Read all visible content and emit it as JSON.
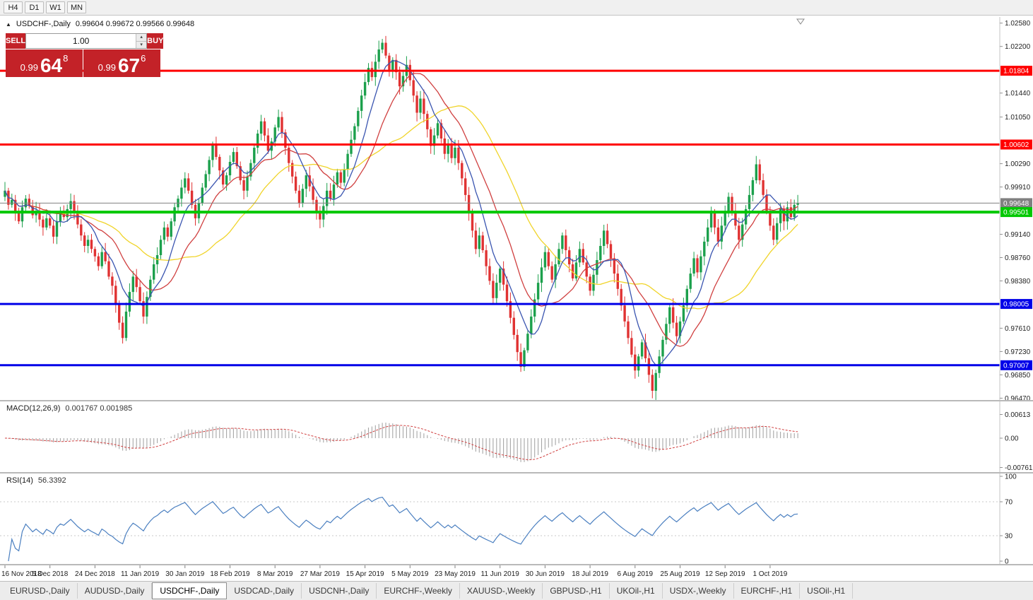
{
  "colors": {
    "trade_red": "#c32228",
    "bull": "#1ca04c",
    "bear": "#e03232",
    "ma_fast": "#3a55b0",
    "ma_med": "#d04040",
    "ma_slow": "#f0d42a",
    "macd_hist": "#a6a6a6",
    "macd_signal": "#d04040",
    "rsi_line": "#4a7fc0",
    "cur_price": "#808080"
  },
  "icons": {
    "collapse": "▲",
    "spin_up": "▴",
    "spin_down": "▾"
  },
  "toolbar": {
    "timeframes": [
      "H4",
      "D1",
      "W1",
      "MN"
    ]
  },
  "header": {
    "symbol": "USDCHF-,Daily",
    "ohlc": "0.99604 0.99672 0.99566 0.99648"
  },
  "trade_widget": {
    "sell_label": "SELL",
    "buy_label": "BUY",
    "volume": "1.00",
    "sell_small": "0.99",
    "sell_big": "64",
    "sell_sup": "8",
    "buy_small": "0.99",
    "buy_big": "67",
    "buy_sup": "6"
  },
  "indicators": {
    "macd": {
      "name": "MACD(12,26,9)",
      "values": "0.001767 0.001985",
      "axis": [
        "0.00613",
        "0.00",
        "-0.00761"
      ]
    },
    "rsi": {
      "name": "RSI(14)",
      "value": "56.3392",
      "axis": [
        "100",
        "70",
        "30",
        "0"
      ],
      "levels": [
        70,
        30
      ]
    }
  },
  "tabs": {
    "items": [
      "EURUSD-,Daily",
      "AUDUSD-,Daily",
      "USDCHF-,Daily",
      "USDCAD-,Daily",
      "USDCNH-,Daily",
      "EURCHF-,Weekly",
      "XAUUSD-,Weekly",
      "GBPUSD-,H1",
      "UKOil-,H1",
      "USDX-,Weekly",
      "EURCHF-,H1",
      "USOil-,H1"
    ],
    "active_index": 2
  },
  "chart_data": {
    "type": "candlestick",
    "symbol": "USDCHF",
    "timeframe": "Daily",
    "ohlc_display": {
      "open": 0.99604,
      "high": 0.99672,
      "low": 0.99566,
      "close": 0.99648
    },
    "price_range": [
      0.9644,
      1.0268
    ],
    "y_ticks": [
      "1.02580",
      "1.02200",
      "1.01440",
      "1.01050",
      "1.00290",
      "0.99910",
      "0.99140",
      "0.98760",
      "0.98380",
      "0.97610",
      "0.97230",
      "0.96850",
      "0.96470"
    ],
    "horizontal_lines": [
      {
        "label": "1.01804",
        "price": 1.01804,
        "color": "#ff0000",
        "width": 3
      },
      {
        "label": "1.00602",
        "price": 1.00602,
        "color": "#ff0000",
        "width": 3
      },
      {
        "label": "0.99501",
        "price": 0.99501,
        "color": "#00c800",
        "width": 4
      },
      {
        "label": "0.98005",
        "price": 0.98005,
        "color": "#0000e8",
        "width": 3
      },
      {
        "label": "0.97007",
        "price": 0.97007,
        "color": "#0000e8",
        "width": 3
      }
    ],
    "current_price": {
      "label": "0.99648",
      "price": 0.99648
    },
    "x_labels": [
      "16 Nov 2018",
      "5 Dec 2018",
      "24 Dec 2018",
      "11 Jan 2019",
      "30 Jan 2019",
      "18 Feb 2019",
      "8 Mar 2019",
      "27 Mar 2019",
      "15 Apr 2019",
      "5 May 2019",
      "23 May 2019",
      "11 Jun 2019",
      "30 Jun 2019",
      "18 Jul 2019",
      "6 Aug 2019",
      "25 Aug 2019",
      "12 Sep 2019",
      "1 Oct 2019"
    ],
    "candles_per_label": 13,
    "moving_average_periods": {
      "fast": 8,
      "medium": 17,
      "slow": 34
    },
    "macd_params": [
      12,
      26,
      9
    ],
    "rsi_period": 14,
    "closes": [
      0.9985,
      0.9962,
      0.997,
      0.9948,
      0.9935,
      0.9958,
      0.9972,
      0.996,
      0.9945,
      0.9952,
      0.9938,
      0.9925,
      0.994,
      0.9928,
      0.991,
      0.9935,
      0.995,
      0.9942,
      0.9955,
      0.9968,
      0.995,
      0.993,
      0.9912,
      0.9895,
      0.9905,
      0.989,
      0.9878,
      0.9862,
      0.9885,
      0.987,
      0.9845,
      0.983,
      0.98,
      0.977,
      0.9745,
      0.9788,
      0.982,
      0.9845,
      0.9828,
      0.9805,
      0.978,
      0.9812,
      0.984,
      0.9865,
      0.988,
      0.9905,
      0.9925,
      0.991,
      0.9935,
      0.9958,
      0.9972,
      0.999,
      1.0005,
      0.9985,
      0.9962,
      0.994,
      0.9965,
      0.999,
      1.0012,
      1.0035,
      1.006,
      1.004,
      1.0018,
      0.9995,
      1.001,
      1.0032,
      1.0048,
      1.0025,
      1.0002,
      0.9985,
      1.0008,
      1.003,
      1.0055,
      1.0078,
      1.0098,
      1.0075,
      1.005,
      1.0065,
      1.0088,
      1.0105,
      1.008,
      1.0055,
      1.003,
      1.0008,
      0.9985,
      0.9965,
      0.9988,
      1.001,
      0.9992,
      0.997,
      0.995,
      0.9938,
      0.996,
      0.9985,
      0.9972,
      0.9995,
      1.0015,
      0.9998,
      1.002,
      1.0045,
      1.0068,
      1.009,
      1.0115,
      1.014,
      1.0162,
      1.0185,
      1.017,
      1.0195,
      1.0215,
      1.0226,
      1.0205,
      1.0182,
      1.0198,
      1.0178,
      1.0155,
      1.0172,
      1.019,
      1.0165,
      1.014,
      1.0112,
      1.0135,
      1.011,
      1.0085,
      1.0058,
      1.0075,
      1.0095,
      1.007,
      1.0045,
      1.0062,
      1.0038,
      1.0055,
      1.003,
      1.0005,
      0.9978,
      0.995,
      0.992,
      0.989,
      0.9912,
      0.9888,
      0.9862,
      0.9838,
      0.981,
      0.9835,
      0.9858,
      0.9832,
      0.9805,
      0.9778,
      0.975,
      0.9722,
      0.9698,
      0.9725,
      0.9752,
      0.978,
      0.9808,
      0.9835,
      0.986,
      0.9885,
      0.9862,
      0.984,
      0.9865,
      0.989,
      0.9912,
      0.9888,
      0.9865,
      0.9842,
      0.9868,
      0.989,
      0.9868,
      0.9845,
      0.9822,
      0.9848,
      0.9872,
      0.9895,
      0.992,
      0.9898,
      0.9875,
      0.985,
      0.9825,
      0.9798,
      0.9772,
      0.9745,
      0.9718,
      0.9692,
      0.9715,
      0.9738,
      0.9712,
      0.9685,
      0.9659,
      0.9688,
      0.9715,
      0.9742,
      0.9768,
      0.9795,
      0.977,
      0.9748,
      0.9772,
      0.9798,
      0.9825,
      0.985,
      0.9875,
      0.9852,
      0.9878,
      0.9902,
      0.9925,
      0.9948,
      0.9925,
      0.9902,
      0.9928,
      0.9952,
      0.9975,
      0.9952,
      0.9928,
      0.9905,
      0.993,
      0.9955,
      0.9978,
      1.0002,
      1.0028,
      1.0002,
      0.9978,
      0.9952,
      0.9928,
      0.9905,
      0.9932,
      0.9956,
      0.9935,
      0.9958,
      0.9942,
      0.9962,
      0.99648
    ]
  }
}
